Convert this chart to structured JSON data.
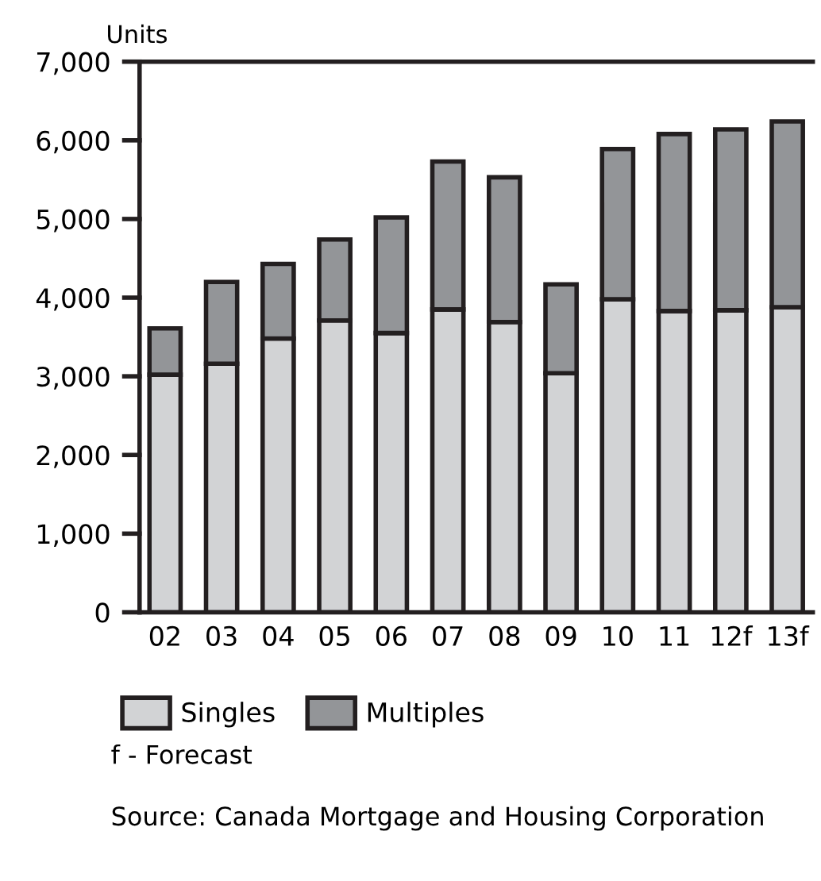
{
  "chart_data": {
    "type": "bar",
    "stacked": true,
    "ylabel": "Units",
    "categories": [
      "02",
      "03",
      "04",
      "05",
      "06",
      "07",
      "08",
      "09",
      "10",
      "11",
      "12f",
      "13f"
    ],
    "series": [
      {
        "name": "Singles",
        "color": "#d2d3d5",
        "values": [
          3020,
          3160,
          3480,
          3710,
          3550,
          3850,
          3690,
          3040,
          3980,
          3830,
          3840,
          3880
        ]
      },
      {
        "name": "Multiples",
        "color": "#939598",
        "values": [
          590,
          1040,
          950,
          1030,
          1470,
          1880,
          1840,
          1130,
          1910,
          2250,
          2300,
          2360
        ]
      }
    ],
    "ylim": [
      0,
      7000
    ],
    "yticks": [
      {
        "value": 0,
        "label": "0"
      },
      {
        "value": 1000,
        "label": "1,000"
      },
      {
        "value": 2000,
        "label": "2,000"
      },
      {
        "value": 3000,
        "label": "3,000"
      },
      {
        "value": 4000,
        "label": "4,000"
      },
      {
        "value": 5000,
        "label": "5,000"
      },
      {
        "value": 6000,
        "label": "6,000"
      },
      {
        "value": 7000,
        "label": "7,000"
      }
    ],
    "grid": false,
    "legend": "bottom",
    "annotations": [
      "f - Forecast",
      "Source: Canada Mortgage and Housing Corporation"
    ]
  }
}
